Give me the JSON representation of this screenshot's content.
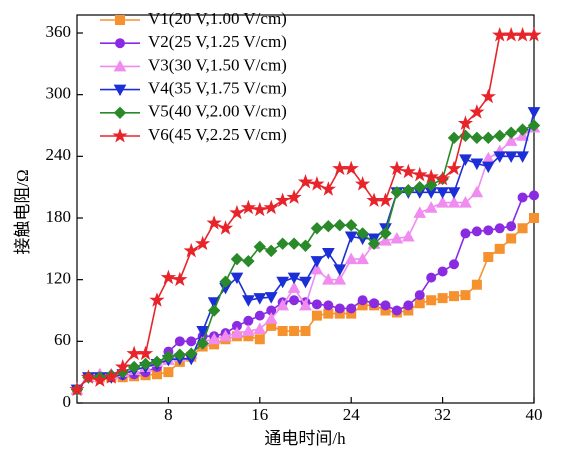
{
  "chart_data": {
    "type": "line",
    "x_label": "通电时间/h",
    "y_label": "接触电阻/Ω",
    "x": [
      0,
      1,
      2,
      3,
      4,
      5,
      6,
      7,
      8,
      9,
      10,
      11,
      12,
      13,
      14,
      15,
      16,
      17,
      18,
      19,
      20,
      21,
      22,
      23,
      24,
      25,
      26,
      27,
      28,
      29,
      30,
      31,
      32,
      33,
      34,
      35,
      36,
      37,
      38,
      39,
      40
    ],
    "xlim": [
      0,
      40
    ],
    "xticks": [
      8,
      16,
      24,
      32,
      40
    ],
    "ylim": [
      0,
      360
    ],
    "yticks": [
      0,
      60,
      120,
      180,
      240,
      300,
      360
    ],
    "series": [
      {
        "name": "V1(20 V,1.00 V/cm)",
        "color": "#f5922f",
        "marker": "square",
        "values": [
          13,
          25,
          25,
          25,
          25,
          26,
          27,
          28,
          30,
          40,
          45,
          55,
          57,
          62,
          65,
          65,
          62,
          75,
          70,
          70,
          70,
          85,
          87,
          87,
          87,
          95,
          95,
          90,
          88,
          90,
          97,
          100,
          102,
          104,
          105,
          115,
          142,
          150,
          160,
          170,
          180
        ]
      },
      {
        "name": "V2(25 V,1.25 V/cm)",
        "color": "#8a2be2",
        "marker": "circle",
        "values": [
          13,
          25,
          25,
          25,
          27,
          28,
          30,
          35,
          50,
          60,
          60,
          65,
          65,
          68,
          75,
          80,
          85,
          90,
          98,
          100,
          98,
          96,
          95,
          92,
          92,
          100,
          97,
          95,
          90,
          95,
          105,
          122,
          128,
          135,
          165,
          167,
          168,
          170,
          172,
          200,
          202
        ]
      },
      {
        "name": "V3(30 V,1.50 V/cm)",
        "color": "#f08cf0",
        "marker": "triangle-up",
        "values": [
          13,
          25,
          28,
          28,
          30,
          32,
          35,
          40,
          42,
          45,
          48,
          60,
          62,
          65,
          68,
          70,
          72,
          82,
          95,
          112,
          95,
          130,
          120,
          120,
          140,
          140,
          155,
          158,
          160,
          162,
          185,
          190,
          195,
          195,
          195,
          205,
          238,
          245,
          255,
          260,
          268
        ]
      },
      {
        "name": "V4(35 V,1.75 V/cm)",
        "color": "#1c2fd6",
        "marker": "triangle-down",
        "values": [
          13,
          25,
          25,
          25,
          28,
          32,
          35,
          38,
          42,
          43,
          43,
          70,
          98,
          112,
          122,
          100,
          102,
          103,
          118,
          122,
          118,
          138,
          146,
          130,
          162,
          160,
          160,
          170,
          205,
          205,
          205,
          205,
          205,
          205,
          237,
          233,
          230,
          240,
          240,
          240,
          283
        ]
      },
      {
        "name": "V5(40 V,2.00 V/cm)",
        "color": "#2a8a2a",
        "marker": "diamond",
        "values": [
          13,
          25,
          25,
          27,
          30,
          35,
          38,
          40,
          45,
          47,
          48,
          58,
          90,
          118,
          140,
          138,
          152,
          148,
          155,
          155,
          153,
          170,
          172,
          173,
          173,
          165,
          155,
          165,
          205,
          207,
          210,
          212,
          218,
          258,
          260,
          258,
          258,
          260,
          263,
          266,
          270
        ]
      },
      {
        "name": "V6(45 V,2.25 V/cm)",
        "color": "#e8242b",
        "marker": "star",
        "values": [
          13,
          25,
          22,
          25,
          35,
          48,
          48,
          100,
          122,
          120,
          148,
          155,
          175,
          170,
          185,
          190,
          188,
          190,
          197,
          200,
          215,
          213,
          208,
          228,
          228,
          213,
          197,
          197,
          228,
          225,
          222,
          220,
          218,
          228,
          272,
          283,
          298,
          358,
          358,
          358,
          358
        ]
      }
    ]
  }
}
